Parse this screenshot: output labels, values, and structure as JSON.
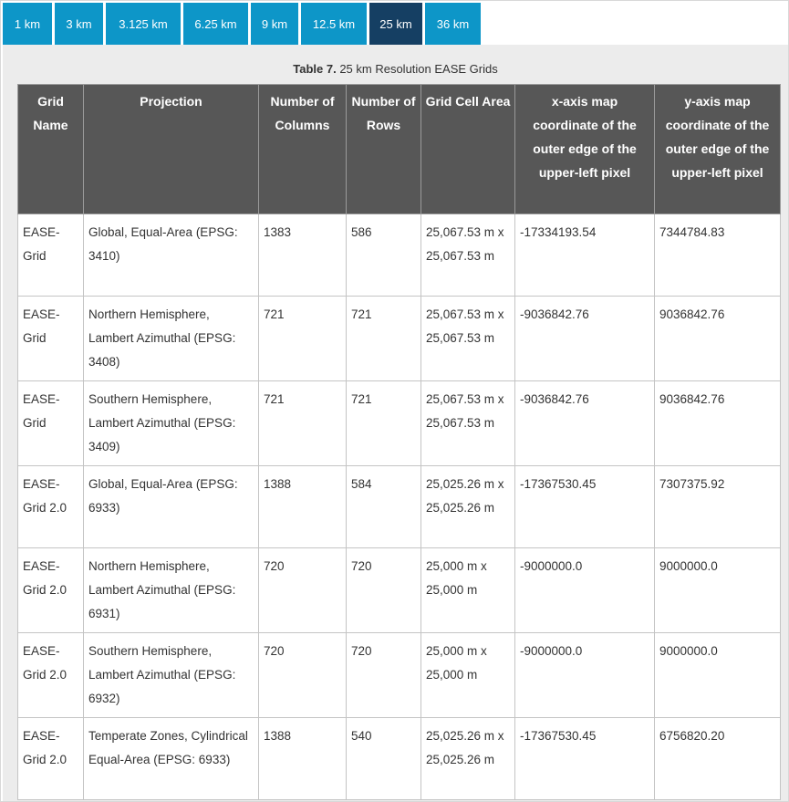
{
  "tabs": [
    "1 km",
    "3 km",
    "3.125 km",
    "6.25 km",
    "9 km",
    "12.5 km",
    "25 km",
    "36 km"
  ],
  "active_tab": "25 km",
  "caption": {
    "prefix": "Table 7.",
    "text": " 25 km Resolution EASE Grids"
  },
  "headers": [
    "Grid Name",
    "Projection",
    "Number of Columns",
    "Number of Rows",
    "Grid Cell Area",
    "x-axis map coordinate of the outer edge of the upper-left pixel",
    "y-axis map coordinate of the outer edge of the upper-left pixel"
  ],
  "rows": [
    [
      "EASE-Grid",
      "Global, Equal-Area (EPSG: 3410)",
      "1383",
      "586",
      "25,067.53 m x 25,067.53 m",
      "-17334193.54",
      "7344784.83"
    ],
    [
      "EASE-Grid",
      "Northern Hemisphere, Lambert Azimuthal (EPSG: 3408)",
      "721",
      "721",
      "25,067.53 m x 25,067.53 m",
      "-9036842.76",
      "9036842.76"
    ],
    [
      "EASE-Grid",
      "Southern Hemisphere, Lambert Azimuthal (EPSG: 3409)",
      "721",
      "721",
      "25,067.53 m x 25,067.53 m",
      "-9036842.76",
      "9036842.76"
    ],
    [
      "EASE-Grid 2.0",
      "Global, Equal-Area (EPSG: 6933)",
      "1388",
      "584",
      "25,025.26 m x 25,025.26 m",
      "-17367530.45",
      "7307375.92"
    ],
    [
      "EASE-Grid 2.0",
      "Northern Hemisphere, Lambert Azimuthal (EPSG: 6931)",
      "720",
      "720",
      "25,000 m x 25,000 m",
      "-9000000.0",
      "9000000.0"
    ],
    [
      "EASE-Grid 2.0",
      "Southern Hemisphere, Lambert Azimuthal (EPSG: 6932)",
      "720",
      "720",
      "25,000 m x 25,000 m",
      "-9000000.0",
      "9000000.0"
    ],
    [
      "EASE-Grid 2.0",
      "Temperate Zones, Cylindrical Equal-Area (EPSG: 6933)",
      "1388",
      "540",
      "25,025.26 m x 25,025.26 m",
      "-17367530.45",
      "6756820.20"
    ]
  ],
  "colors": {
    "tab": "#0d96c8",
    "tab_active": "#153f63",
    "header_bg": "#575757",
    "panel_bg": "#ececec"
  }
}
